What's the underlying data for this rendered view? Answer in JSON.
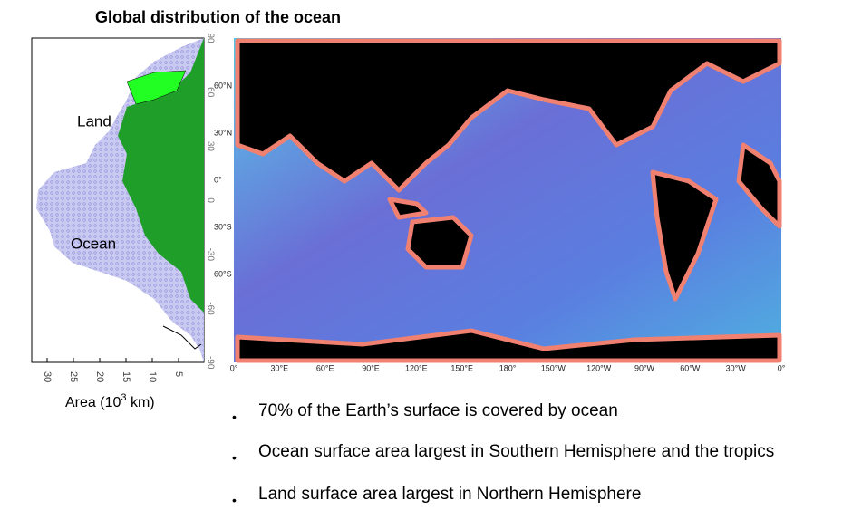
{
  "title": "Global distribution of the ocean",
  "profile": {
    "land_label": "Land",
    "ocean_label": "Ocean",
    "area_ticks": [
      "30",
      "25",
      "20",
      "15",
      "10",
      "5"
    ],
    "lat_ticks": [
      "90",
      "60",
      "30",
      "0",
      "-30",
      "-60",
      "-90"
    ],
    "axis_label": {
      "before": "Area (10",
      "sup": "3",
      "after": " km)"
    }
  },
  "map": {
    "lat_labels": [
      "60°N",
      "30°N",
      "0°",
      "30°S",
      "60°S"
    ],
    "lon_labels": [
      "0°",
      "30°E",
      "60°E",
      "90°E",
      "120°E",
      "150°E",
      "180°",
      "150°W",
      "120°W",
      "90°W",
      "60°W",
      "30°W",
      "0°"
    ]
  },
  "bullets": [
    "70% of the Earth’s surface is covered by ocean",
    "Ocean surface area largest in Southern Hemisphere and the tropics",
    "Land surface area largest in Northern Hemisphere"
  ]
}
